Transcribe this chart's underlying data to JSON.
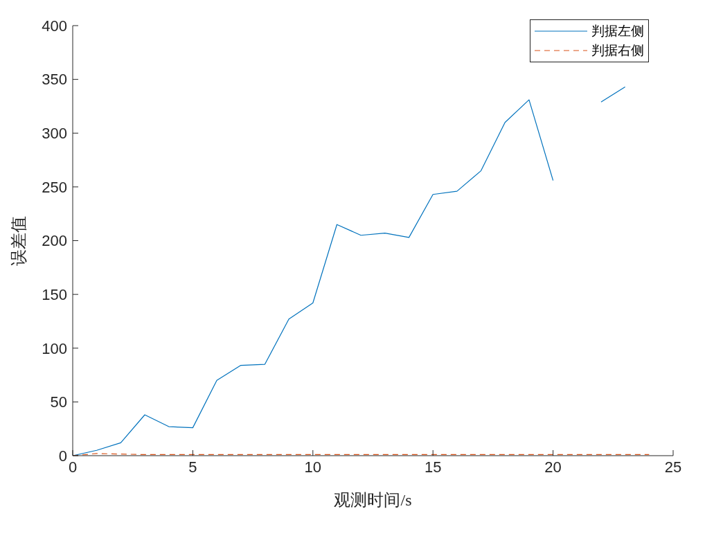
{
  "chart_data": {
    "type": "line",
    "xlabel": "观测时间/s",
    "ylabel": "误差值",
    "x": [
      0,
      1,
      2,
      3,
      4,
      5,
      6,
      7,
      8,
      9,
      10,
      11,
      12,
      13,
      14,
      15,
      16,
      17,
      18,
      19,
      20,
      21,
      22,
      23,
      24
    ],
    "series": [
      {
        "name": "判据左侧",
        "color": "#0072bd",
        "line_style": "solid",
        "values": [
          0,
          5,
          12,
          38,
          27,
          26,
          70,
          84,
          85,
          127,
          142,
          215,
          205,
          207,
          203,
          243,
          246,
          265,
          310,
          331,
          256,
          null,
          329,
          343,
          null
        ]
      },
      {
        "name": "判据右侧",
        "color": "#d95319",
        "line_style": "dashed",
        "values": [
          0,
          2,
          1.5,
          1,
          1,
          1,
          1,
          1,
          1,
          1,
          1,
          1,
          1,
          1,
          1,
          1,
          1,
          1,
          1,
          1,
          1,
          1,
          1,
          1,
          1
        ]
      }
    ],
    "xlim": [
      0,
      25
    ],
    "xticks": [
      0,
      5,
      10,
      15,
      20,
      25
    ],
    "ylim": [
      0,
      400
    ],
    "yticks": [
      0,
      50,
      100,
      150,
      200,
      250,
      300,
      350,
      400
    ],
    "legend": "top right",
    "marker": "none"
  }
}
